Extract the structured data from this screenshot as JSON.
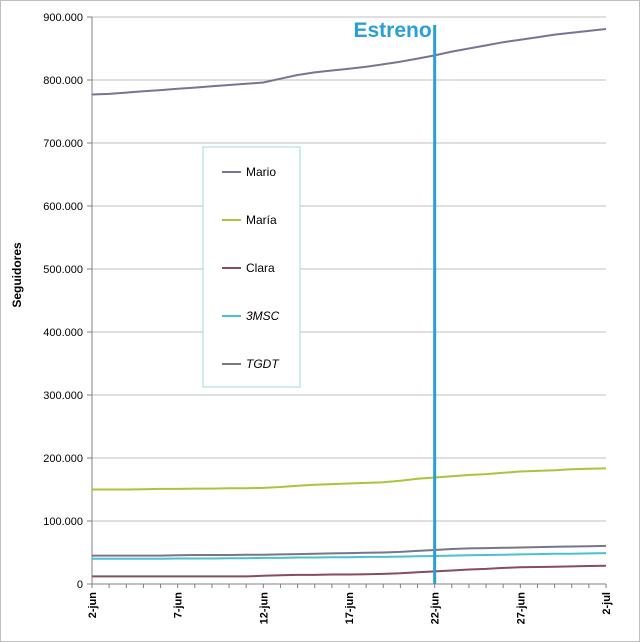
{
  "chart_data": {
    "type": "line",
    "title": "",
    "xlabel": "",
    "ylabel": "Seguidores",
    "ylim": [
      0,
      900000
    ],
    "yticks": [
      0,
      100000,
      200000,
      300000,
      400000,
      500000,
      600000,
      700000,
      800000,
      900000
    ],
    "ytick_labels": [
      "0",
      "100.000",
      "200.000",
      "300.000",
      "400.000",
      "500.000",
      "600.000",
      "700.000",
      "800.000",
      "900.000"
    ],
    "x": [
      "2-jun",
      "3-jun",
      "4-jun",
      "5-jun",
      "6-jun",
      "7-jun",
      "8-jun",
      "9-jun",
      "10-jun",
      "11-jun",
      "12-jun",
      "13-jun",
      "14-jun",
      "15-jun",
      "16-jun",
      "17-jun",
      "18-jun",
      "19-jun",
      "20-jun",
      "21-jun",
      "22-jun",
      "23-jun",
      "24-jun",
      "25-jun",
      "26-jun",
      "27-jun",
      "28-jun",
      "29-jun",
      "30-jun",
      "1-jul",
      "2-jul"
    ],
    "xtick_labels": [
      "2-jun",
      "7-jun",
      "12-jun",
      "17-jun",
      "22-jun",
      "27-jun",
      "2-jul"
    ],
    "grid": "horizontal",
    "legend_position": "upper-left inside",
    "event": {
      "label": "Estreno",
      "x": "22-jun",
      "color": "#2a9fd6"
    },
    "series": [
      {
        "name": "Mario",
        "italic": false,
        "color": "#7a7394",
        "values": [
          777000,
          778000,
          780000,
          782000,
          784000,
          786000,
          788000,
          790000,
          792000,
          794000,
          796000,
          802000,
          808000,
          812000,
          815000,
          818000,
          821000,
          825000,
          829000,
          834000,
          839000,
          845000,
          850000,
          855000,
          860000,
          864000,
          868000,
          872000,
          875000,
          878000,
          881000
        ]
      },
      {
        "name": "María",
        "italic": false,
        "color": "#a8c63a",
        "values": [
          150000,
          150000,
          150000,
          150500,
          151000,
          151000,
          151500,
          151500,
          152000,
          152000,
          152500,
          154000,
          156000,
          157500,
          158500,
          159500,
          160500,
          161500,
          164000,
          167000,
          169000,
          171000,
          173000,
          174500,
          176500,
          178500,
          179500,
          180500,
          182000,
          183000,
          183500
        ]
      },
      {
        "name": "Clara",
        "italic": false,
        "color": "#8b4a62",
        "values": [
          12000,
          12000,
          12000,
          12000,
          12000,
          12000,
          12000,
          12000,
          12000,
          12000,
          13000,
          14000,
          14500,
          14500,
          15000,
          15000,
          15500,
          16000,
          17000,
          18500,
          20000,
          21500,
          23000,
          24000,
          25500,
          26500,
          27000,
          27500,
          28000,
          28500,
          29000
        ]
      },
      {
        "name": "3MSC",
        "italic": true,
        "color": "#4bc0cf",
        "values": [
          40000,
          40000,
          40000,
          40000,
          40000,
          40500,
          40500,
          40500,
          41000,
          41000,
          41500,
          41500,
          42000,
          42000,
          42500,
          42500,
          43000,
          43000,
          43500,
          44000,
          44500,
          45000,
          45500,
          46000,
          46500,
          47000,
          47500,
          48000,
          48000,
          48500,
          49000
        ]
      },
      {
        "name": "TGDT",
        "italic": true,
        "color": "#777788",
        "values": [
          45000,
          45000,
          45000,
          45000,
          45000,
          45500,
          46000,
          46000,
          46000,
          46500,
          46500,
          47000,
          47500,
          48000,
          48500,
          49000,
          49500,
          50000,
          51000,
          52500,
          54000,
          55500,
          56500,
          57000,
          57500,
          58000,
          58500,
          59000,
          59500,
          60000,
          60500
        ]
      }
    ]
  }
}
